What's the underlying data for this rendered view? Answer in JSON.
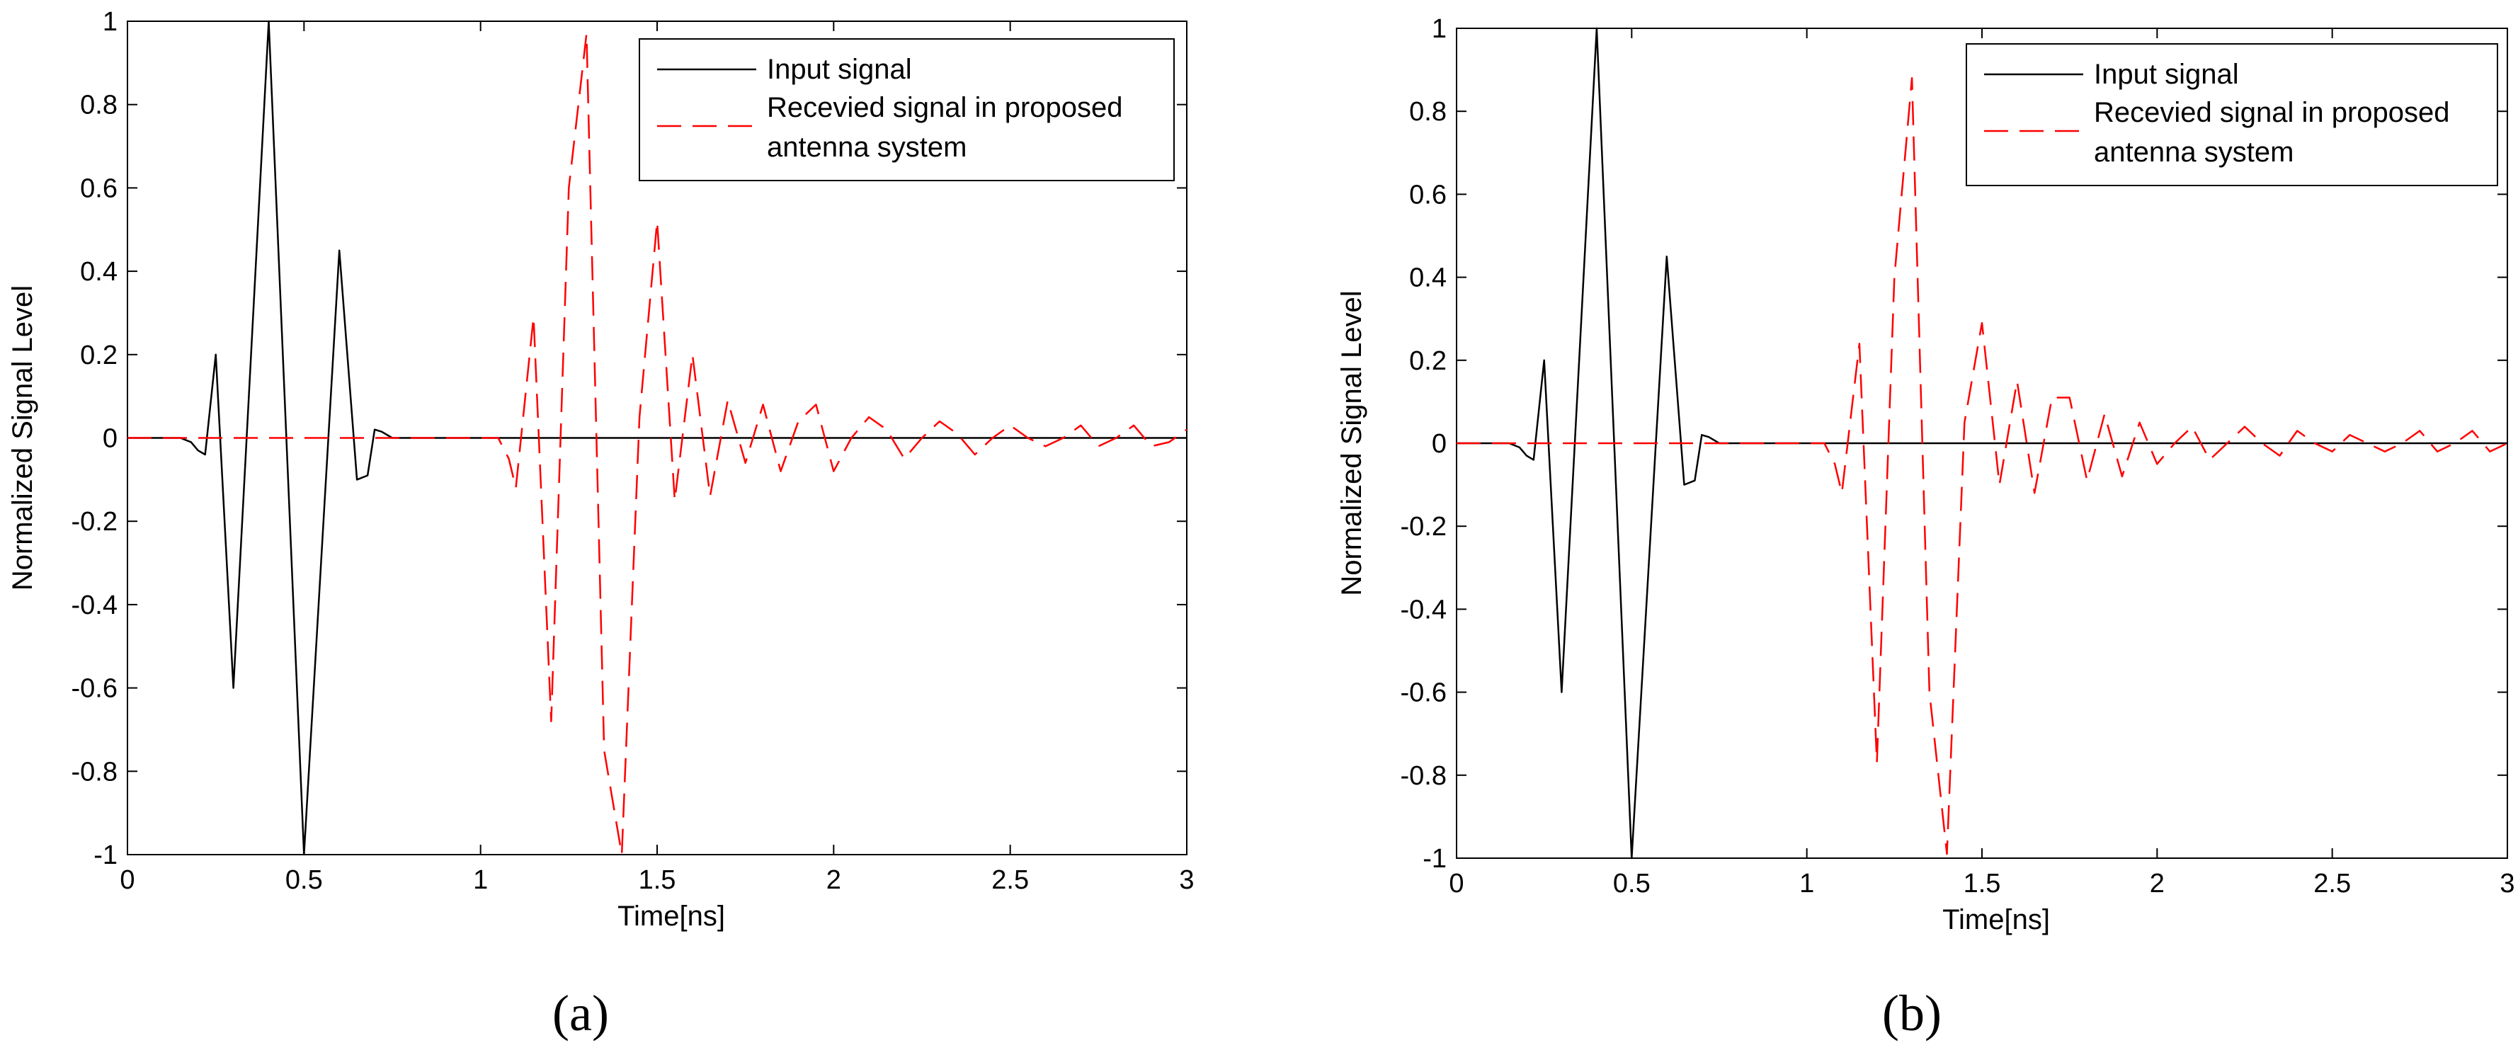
{
  "chart_data": [
    {
      "panel_label": "(a)",
      "type": "line",
      "xlabel": "Time[ns]",
      "ylabel": "Normalized Signal Level",
      "xlim": [
        0,
        3
      ],
      "ylim": [
        -1,
        1
      ],
      "xticks": [
        "0",
        "0.5",
        "1",
        "1.5",
        "2",
        "2.5",
        "3"
      ],
      "yticks": [
        "-1",
        "-0.8",
        "-0.6",
        "-0.4",
        "-0.2",
        "0",
        "0.2",
        "0.4",
        "0.6",
        "0.8",
        "1"
      ],
      "grid": false,
      "legend_position": "top-right",
      "series": [
        {
          "name": "Input signal",
          "color": "#000000",
          "style": "solid",
          "x": [
            0,
            0.15,
            0.18,
            0.2,
            0.22,
            0.25,
            0.3,
            0.4,
            0.5,
            0.6,
            0.65,
            0.68,
            0.7,
            0.72,
            0.75,
            3.0
          ],
          "y": [
            0,
            0,
            -0.01,
            -0.03,
            -0.04,
            0.2,
            -0.6,
            1.0,
            -1.0,
            0.45,
            -0.1,
            -0.09,
            0.02,
            0.015,
            0,
            0
          ]
        },
        {
          "name": "Recevied signal in proposed antenna system",
          "color": "#ff0000",
          "style": "dashed",
          "x": [
            0,
            1.05,
            1.08,
            1.1,
            1.15,
            1.2,
            1.25,
            1.3,
            1.35,
            1.4,
            1.45,
            1.5,
            1.55,
            1.6,
            1.65,
            1.7,
            1.75,
            1.8,
            1.85,
            1.9,
            1.95,
            2.0,
            2.05,
            2.1,
            2.15,
            2.2,
            2.25,
            2.3,
            2.35,
            2.4,
            2.45,
            2.5,
            2.55,
            2.6,
            2.65,
            2.7,
            2.75,
            2.8,
            2.85,
            2.9,
            2.95,
            3.0
          ],
          "y": [
            0,
            0,
            -0.05,
            -0.12,
            0.29,
            -0.68,
            0.6,
            0.97,
            -0.75,
            -1.0,
            0.05,
            0.52,
            -0.15,
            0.2,
            -0.14,
            0.09,
            -0.06,
            0.08,
            -0.08,
            0.04,
            0.08,
            -0.08,
            0.0,
            0.05,
            0.02,
            -0.05,
            0.0,
            0.04,
            0.01,
            -0.04,
            0.0,
            0.03,
            0.0,
            -0.02,
            0.0,
            0.03,
            -0.02,
            0.0,
            0.03,
            -0.02,
            -0.01,
            0.02
          ]
        }
      ]
    },
    {
      "panel_label": "(b)",
      "type": "line",
      "xlabel": "Time[ns]",
      "ylabel": "Normalized Signal Level",
      "xlim": [
        0,
        3
      ],
      "ylim": [
        -1,
        1
      ],
      "xticks": [
        "0",
        "0.5",
        "1",
        "1.5",
        "2",
        "2.5",
        "3"
      ],
      "yticks": [
        "-1",
        "-0.8",
        "-0.6",
        "-0.4",
        "-0.2",
        "0",
        "0.2",
        "0.4",
        "0.6",
        "0.8",
        "1"
      ],
      "grid": false,
      "legend_position": "top-right",
      "series": [
        {
          "name": "Input signal",
          "color": "#000000",
          "style": "solid",
          "x": [
            0,
            0.15,
            0.18,
            0.2,
            0.22,
            0.25,
            0.3,
            0.4,
            0.5,
            0.6,
            0.65,
            0.68,
            0.7,
            0.72,
            0.75,
            3.0
          ],
          "y": [
            0,
            0,
            -0.01,
            -0.03,
            -0.04,
            0.2,
            -0.6,
            1.0,
            -1.0,
            0.45,
            -0.1,
            -0.09,
            0.02,
            0.015,
            0,
            0
          ]
        },
        {
          "name": "Recevied signal in proposed antenna system",
          "color": "#ff0000",
          "style": "dashed",
          "x": [
            0,
            1.05,
            1.08,
            1.1,
            1.15,
            1.2,
            1.25,
            1.3,
            1.35,
            1.4,
            1.45,
            1.5,
            1.55,
            1.6,
            1.65,
            1.7,
            1.75,
            1.8,
            1.85,
            1.9,
            1.95,
            2.0,
            2.05,
            2.1,
            2.15,
            2.2,
            2.25,
            2.3,
            2.35,
            2.4,
            2.45,
            2.5,
            2.55,
            2.6,
            2.65,
            2.7,
            2.75,
            2.8,
            2.85,
            2.9,
            2.95,
            3.0
          ],
          "y": [
            0,
            0,
            -0.05,
            -0.12,
            0.24,
            -0.77,
            0.4,
            0.88,
            -0.6,
            -0.99,
            0.05,
            0.29,
            -0.1,
            0.15,
            -0.12,
            0.11,
            0.11,
            -0.09,
            0.07,
            -0.08,
            0.05,
            -0.05,
            0.0,
            0.04,
            -0.04,
            0.0,
            0.04,
            0.0,
            -0.03,
            0.03,
            0.0,
            -0.02,
            0.02,
            0.0,
            -0.02,
            0.0,
            0.03,
            -0.02,
            0.0,
            0.03,
            -0.02,
            0.0
          ]
        }
      ]
    }
  ]
}
